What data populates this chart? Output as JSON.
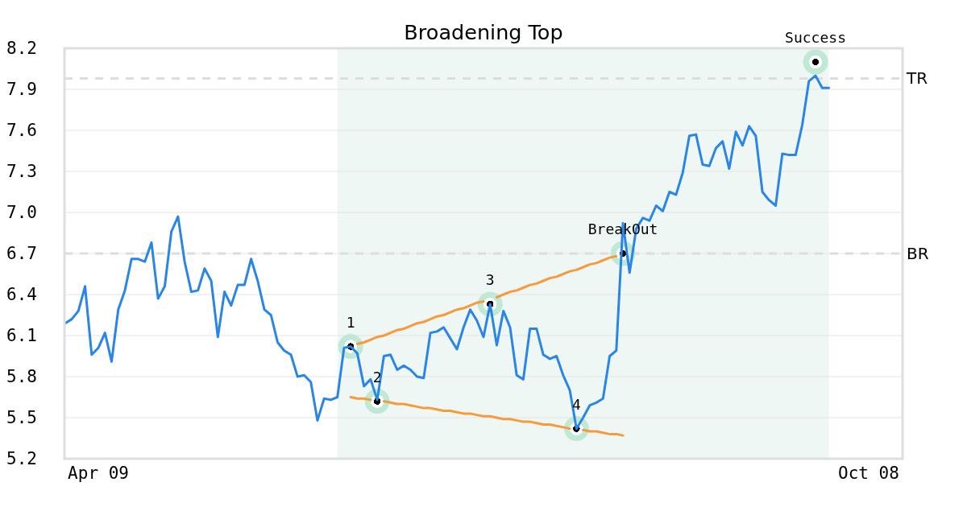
{
  "chart_data": {
    "type": "line",
    "title": "Broadening Top",
    "categories": [
      null,
      null,
      null,
      null,
      null,
      "Apr 09",
      null,
      null,
      null,
      null,
      null,
      null,
      null,
      null,
      null,
      null,
      null,
      null,
      null,
      null,
      null,
      null,
      null,
      null,
      null,
      null,
      null,
      null,
      null,
      null,
      null,
      null,
      null,
      null,
      null,
      null,
      null,
      null,
      null,
      null,
      null,
      null,
      null,
      null,
      null,
      null,
      null,
      null,
      null,
      null,
      null,
      null,
      null,
      null,
      null,
      null,
      null,
      null,
      null,
      null,
      null,
      null,
      null,
      null,
      null,
      null,
      null,
      null,
      null,
      null,
      null,
      null,
      null,
      null,
      null,
      null,
      null,
      null,
      null,
      null,
      null,
      null,
      null,
      null,
      null,
      null,
      null,
      null,
      null,
      null,
      null,
      null,
      null,
      null,
      null,
      null,
      null,
      null,
      null,
      null,
      null,
      null,
      null,
      null,
      null,
      null,
      null,
      null,
      null,
      null,
      null,
      null,
      null,
      null,
      null,
      null,
      null,
      null,
      null,
      null,
      null,
      "Oct 08",
      null,
      null,
      null,
      null,
      null
    ],
    "ylim": [
      5.2,
      8.2
    ],
    "yticks": [
      5.2,
      5.5,
      5.8,
      6.1,
      6.4,
      6.7,
      {
        "value": 7,
        "label": "7.0"
      },
      7.3,
      7.6,
      7.9,
      8.2
    ],
    "grid": "y",
    "line_style": "solid",
    "series": [
      {
        "color": "#2a85e8",
        "values": [
          6.19,
          6.22,
          6.28,
          6.46,
          5.96,
          6.01,
          6.12,
          5.91,
          6.29,
          6.43,
          6.66,
          6.66,
          6.64,
          6.78,
          6.37,
          6.46,
          6.86,
          6.97,
          6.64,
          6.42,
          6.43,
          6.59,
          6.5,
          6.09,
          6.42,
          6.32,
          6.47,
          6.47,
          6.66,
          6.5,
          6.29,
          6.25,
          6.05,
          5.99,
          5.96,
          5.8,
          5.81,
          5.76,
          5.48,
          5.64,
          5.63,
          5.65,
          6.01,
          6.02,
          5.97,
          5.73,
          5.78,
          5.63,
          5.95,
          5.96,
          5.85,
          5.88,
          5.85,
          5.8,
          5.79,
          6.12,
          6.13,
          6.16,
          6.08,
          6.0,
          6.16,
          6.29,
          6.21,
          6.09,
          6.33,
          6.03,
          6.28,
          6.16,
          5.81,
          5.78,
          6.15,
          6.15,
          5.96,
          5.93,
          5.95,
          5.81,
          5.7,
          5.42,
          5.5,
          5.59,
          5.61,
          5.64,
          5.95,
          5.99,
          6.92,
          6.56,
          6.88,
          6.96,
          6.94,
          7.05,
          7.01,
          7.15,
          7.13,
          7.29,
          7.56,
          7.57,
          7.35,
          7.34,
          7.47,
          7.52,
          7.32,
          7.59,
          7.49,
          7.63,
          7.56,
          7.15,
          7.09,
          7.05,
          7.43,
          7.42,
          7.42,
          7.64,
          7.96,
          8.0,
          7.91,
          7.91,
          null,
          null,
          null,
          null,
          null,
          null,
          null,
          null,
          null,
          null,
          null
        ]
      },
      {
        "type": "line",
        "color": "#f89a3c",
        "values": [
          null,
          null,
          null,
          null,
          null,
          null,
          null,
          null,
          null,
          null,
          null,
          null,
          null,
          null,
          null,
          null,
          null,
          null,
          null,
          null,
          null,
          null,
          null,
          null,
          null,
          null,
          null,
          null,
          null,
          null,
          null,
          null,
          null,
          null,
          null,
          null,
          null,
          null,
          null,
          null,
          null,
          null,
          null,
          null,
          6.04,
          6.05,
          6.07,
          6.09,
          6.1,
          6.12,
          6.14,
          6.15,
          6.17,
          6.19,
          6.2,
          6.22,
          6.24,
          6.25,
          6.27,
          6.29,
          6.3,
          6.32,
          6.34,
          6.35,
          null,
          6.38,
          6.4,
          6.42,
          6.43,
          6.45,
          6.47,
          6.48,
          6.5,
          6.52,
          6.53,
          6.55,
          6.57,
          6.58,
          6.6,
          6.62,
          6.63,
          6.65,
          6.67,
          6.68,
          null,
          null,
          null,
          null,
          null,
          null,
          null,
          null,
          null,
          null,
          null,
          null,
          null,
          null,
          null,
          null,
          null,
          null,
          null,
          null,
          null,
          null,
          null,
          null,
          null,
          null,
          null,
          null,
          null,
          null,
          null,
          null,
          null,
          null,
          null,
          null,
          null,
          null,
          null,
          null,
          null,
          null,
          null
        ]
      },
      {
        "type": "line",
        "color": "#f89a3c",
        "values": [
          null,
          null,
          null,
          null,
          null,
          null,
          null,
          null,
          null,
          null,
          null,
          null,
          null,
          null,
          null,
          null,
          null,
          null,
          null,
          null,
          null,
          null,
          null,
          null,
          null,
          null,
          null,
          null,
          null,
          null,
          null,
          null,
          null,
          null,
          null,
          null,
          null,
          null,
          null,
          null,
          null,
          null,
          null,
          5.65,
          5.64,
          5.64,
          5.63,
          null,
          5.62,
          5.61,
          5.6,
          5.6,
          5.59,
          5.58,
          5.57,
          5.57,
          5.56,
          5.55,
          5.55,
          5.54,
          5.53,
          5.53,
          5.52,
          5.51,
          5.51,
          5.5,
          5.49,
          5.49,
          5.48,
          5.47,
          5.47,
          5.46,
          5.45,
          5.45,
          5.44,
          5.43,
          5.42,
          null,
          5.41,
          5.4,
          5.4,
          5.39,
          5.38,
          5.38,
          5.37,
          null,
          null,
          null,
          null,
          null,
          null,
          null,
          null,
          null,
          null,
          null,
          null,
          null,
          null,
          null,
          null,
          null,
          null,
          null,
          null,
          null,
          null,
          null,
          null,
          null,
          null,
          null,
          null,
          null,
          null,
          null,
          null,
          null,
          null,
          null,
          null,
          null,
          null,
          null,
          null,
          null,
          null
        ]
      },
      {
        "type": "scatter",
        "color": "#bfe9d5",
        "marker": "circle",
        "values": [
          null,
          null,
          null,
          null,
          null,
          null,
          null,
          null,
          null,
          null,
          null,
          null,
          null,
          null,
          null,
          null,
          null,
          null,
          null,
          null,
          null,
          null,
          null,
          null,
          null,
          null,
          null,
          null,
          null,
          null,
          null,
          null,
          null,
          null,
          null,
          null,
          null,
          null,
          null,
          null,
          null,
          null,
          null,
          6.02,
          null,
          null,
          null,
          5.62,
          null,
          null,
          null,
          null,
          null,
          null,
          null,
          null,
          null,
          null,
          null,
          null,
          null,
          null,
          null,
          null,
          6.33,
          null,
          null,
          null,
          null,
          null,
          null,
          null,
          null,
          null,
          null,
          null,
          null,
          5.42,
          null,
          null,
          null,
          null,
          null,
          null,
          6.7,
          null,
          null,
          null,
          null,
          null,
          null,
          null,
          null,
          null,
          null,
          null,
          null,
          null,
          null,
          null,
          null,
          null,
          null,
          null,
          null,
          null,
          null,
          null,
          null,
          null,
          null,
          null,
          null,
          8.1,
          null,
          null,
          null,
          null,
          null,
          null,
          null,
          null,
          null,
          null,
          null,
          null,
          null
        ]
      }
    ],
    "ref_lines": [
      {
        "axis": "y",
        "value": 7.98,
        "label": "TR",
        "color": "#dddddd",
        "line_style": "dashed"
      },
      {
        "axis": "y",
        "value": 6.7,
        "label": "BR",
        "color": "#dddddd",
        "line_style": "dashed"
      }
    ],
    "annotations": [
      {
        "text": "1",
        "y": 6.02
      },
      {
        "text": "2",
        "y": 5.62
      },
      {
        "text": "3",
        "y": 6.33
      },
      {
        "text": "4",
        "y": 5.42
      },
      {
        "text": "BreakOut",
        "y": 6.7
      },
      {
        "text": "Success",
        "y": 8.1
      }
    ]
  }
}
